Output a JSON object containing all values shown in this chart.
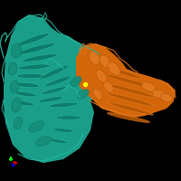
{
  "background_color": "#000000",
  "figsize": [
    2.0,
    2.0
  ],
  "dpi": 100,
  "teal": "#1a9e8a",
  "teal_dark": "#0d7a68",
  "teal_light": "#22b89e",
  "teal_mid": "#158f7a",
  "orange": "#d4660a",
  "orange_dark": "#b35500",
  "orange_light": "#e07820",
  "yellow": "#ffff00",
  "axis": {
    "ox": 0.06,
    "oy": 0.1,
    "green": "#00ee00",
    "red": "#dd0000",
    "blue": "#0000dd"
  }
}
